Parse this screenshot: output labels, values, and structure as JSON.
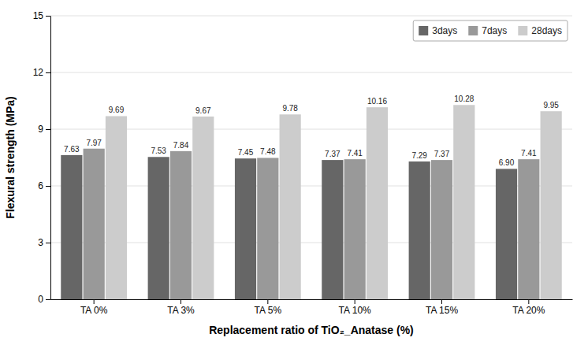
{
  "chart_data": {
    "type": "bar",
    "categories": [
      "TA 0%",
      "TA 3%",
      "TA 5%",
      "TA 10%",
      "TA 15%",
      "TA 20%"
    ],
    "series": [
      {
        "name": "3days",
        "color": "#666666",
        "values": [
          7.63,
          7.53,
          7.45,
          7.37,
          7.29,
          6.9
        ],
        "value_labels": [
          "7.63",
          "7.53",
          "7.45",
          "7.37",
          "7.29",
          "6.90"
        ]
      },
      {
        "name": "7days",
        "color": "#999999",
        "values": [
          7.97,
          7.84,
          7.48,
          7.41,
          7.37,
          7.41
        ],
        "value_labels": [
          "7.97",
          "7.84",
          "7.48",
          "7.41",
          "7.37",
          "7.41"
        ]
      },
      {
        "name": "28days",
        "color": "#cccccc",
        "values": [
          9.69,
          9.67,
          9.78,
          10.16,
          10.28,
          9.95
        ],
        "value_labels": [
          "9.69",
          "9.67",
          "9.78",
          "10.16",
          "10.28",
          "9.95"
        ]
      }
    ],
    "xlabel": "Replacement ratio of TiO₂_Anatase (%)",
    "ylabel": "Flexural strength (MPa)",
    "ylim": [
      0,
      15
    ],
    "yticks": [
      0,
      3,
      6,
      9,
      12,
      15
    ],
    "grid": true,
    "legend": "upper right",
    "data_labels": true
  }
}
